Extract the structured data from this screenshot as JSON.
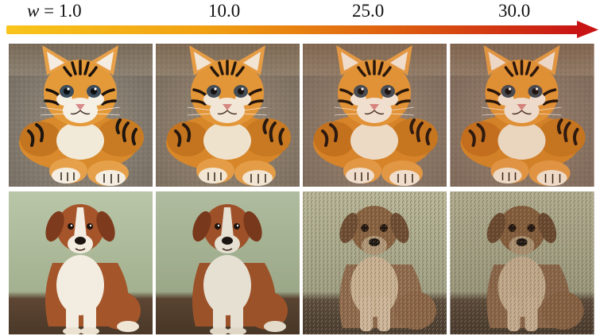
{
  "header": {
    "labels": [
      {
        "var": "w",
        "rest": " = 1.0"
      },
      {
        "var": "",
        "rest": "10.0"
      },
      {
        "var": "",
        "rest": "25.0"
      },
      {
        "var": "",
        "rest": "30.0"
      }
    ]
  },
  "gradient": {
    "start_color": "#f7c21a",
    "end_color": "#c81414"
  },
  "rows": [
    {
      "subject": "tiger-kitten",
      "images": [
        "w=1.0",
        "w=10.0",
        "w=25.0",
        "w=30.0"
      ]
    },
    {
      "subject": "puppy",
      "images": [
        "w=1.0",
        "w=10.0",
        "w=25.0",
        "w=30.0"
      ]
    }
  ]
}
